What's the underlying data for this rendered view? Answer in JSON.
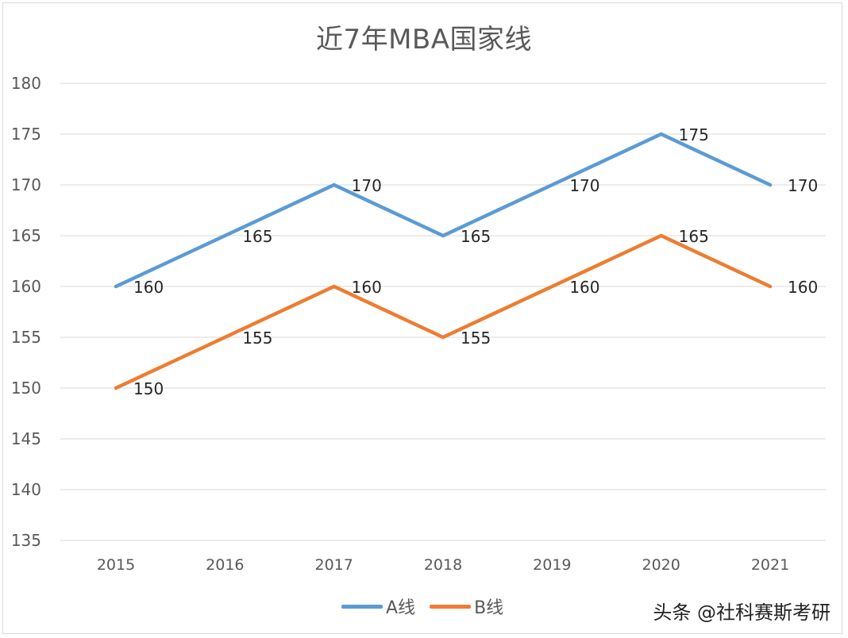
{
  "chart_data": {
    "type": "line",
    "title": "近7年MBA国家线",
    "categories": [
      "2015",
      "2016",
      "2017",
      "2018",
      "2019",
      "2020",
      "2021"
    ],
    "ylim": [
      135,
      180
    ],
    "yticks": [
      135,
      140,
      145,
      150,
      155,
      160,
      165,
      170,
      175,
      180
    ],
    "grid": true,
    "legend_position": "bottom",
    "series": [
      {
        "name": "A线",
        "color": "#5b9bd5",
        "values": [
          160,
          165,
          170,
          165,
          170,
          175,
          170
        ]
      },
      {
        "name": "B线",
        "color": "#ed7d31",
        "values": [
          150,
          155,
          160,
          155,
          160,
          165,
          160
        ]
      }
    ]
  },
  "watermark": "头条 @社科赛斯考研"
}
